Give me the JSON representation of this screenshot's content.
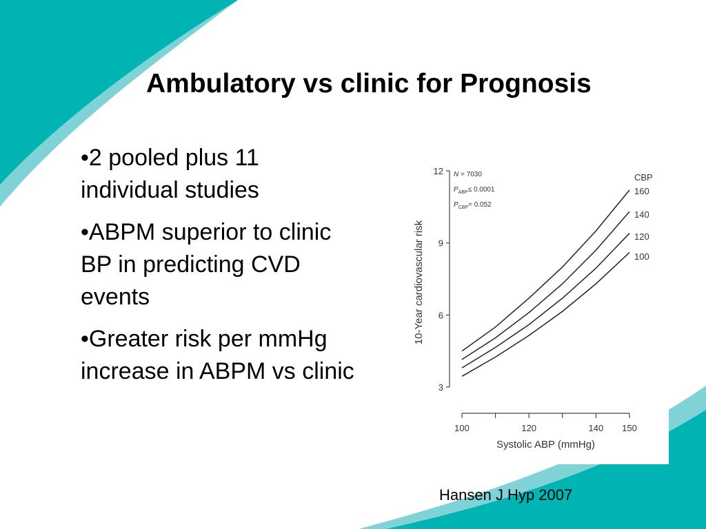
{
  "slide": {
    "title": "Ambulatory vs clinic  for Prognosis",
    "bullets": [
      "•2 pooled plus 11 individual studies",
      "•ABPM superior to clinic BP in predicting CVD events",
      "•Greater risk per mmHg increase in ABPM vs clinic"
    ],
    "citation": "Hansen J Hyp 2007"
  },
  "colors": {
    "teal": "#00b4b4",
    "teal_light": "#7fd3d6",
    "curve": "#222222"
  },
  "chart_data": {
    "type": "line",
    "xlabel": "Systolic ABP (mmHg)",
    "ylabel": "10-Year cardiovascular risk",
    "xlim": [
      100,
      150
    ],
    "ylim": [
      3,
      12
    ],
    "x_ticks": [
      100,
      120,
      140,
      150
    ],
    "y_ticks": [
      3,
      6,
      9,
      12
    ],
    "legend_title": "CBP",
    "annotations": [
      {
        "main": "N",
        "sub": "",
        "rest": " = 7030"
      },
      {
        "main": "P",
        "sub": "ABP",
        "rest": "≤ 0.0001"
      },
      {
        "main": "P",
        "sub": "CBP",
        "rest": "= 0.052"
      }
    ],
    "x": [
      100,
      110,
      120,
      130,
      140,
      150
    ],
    "series": [
      {
        "name": "160",
        "values": [
          4.5,
          5.5,
          6.7,
          8.0,
          9.5,
          11.2
        ]
      },
      {
        "name": "140",
        "values": [
          4.15,
          5.05,
          6.1,
          7.3,
          8.7,
          10.3
        ]
      },
      {
        "name": "120",
        "values": [
          3.8,
          4.65,
          5.6,
          6.7,
          7.95,
          9.4
        ]
      },
      {
        "name": "100",
        "values": [
          3.45,
          4.25,
          5.15,
          6.15,
          7.3,
          8.6
        ]
      }
    ],
    "grid": false,
    "legend": "right"
  }
}
